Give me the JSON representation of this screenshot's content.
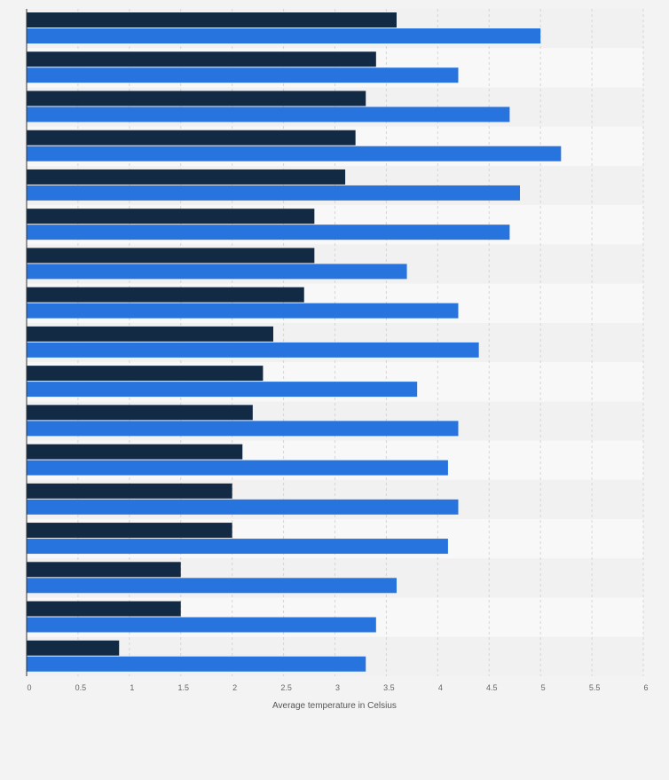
{
  "chart_data": {
    "type": "bar",
    "orientation": "horizontal",
    "xlabel": "Average temperature in Celsius",
    "ylabel": "",
    "xlim": [
      0,
      6
    ],
    "x_ticks": [
      "0",
      "0.5",
      "1",
      "1.5",
      "2",
      "2.5",
      "3",
      "3.5",
      "4",
      "4.5",
      "5",
      "5.5",
      "6"
    ],
    "x_tick_values": [
      0,
      0.5,
      1,
      1.5,
      2,
      2.5,
      3,
      3.5,
      4,
      4.5,
      5,
      5.5,
      6
    ],
    "grid": true,
    "legend": "none",
    "category_count": 17,
    "series": [
      {
        "color": "#132a45",
        "values": [
          3.6,
          3.4,
          3.3,
          3.2,
          3.1,
          2.8,
          2.8,
          2.7,
          2.4,
          2.3,
          2.2,
          2.1,
          2.0,
          2.0,
          1.5,
          1.5,
          0.9
        ]
      },
      {
        "color": "#2874de",
        "values": [
          5.0,
          4.2,
          4.7,
          5.2,
          4.8,
          4.7,
          3.7,
          4.2,
          4.4,
          3.8,
          4.2,
          4.1,
          4.2,
          4.1,
          3.6,
          3.4,
          3.3
        ]
      }
    ]
  }
}
